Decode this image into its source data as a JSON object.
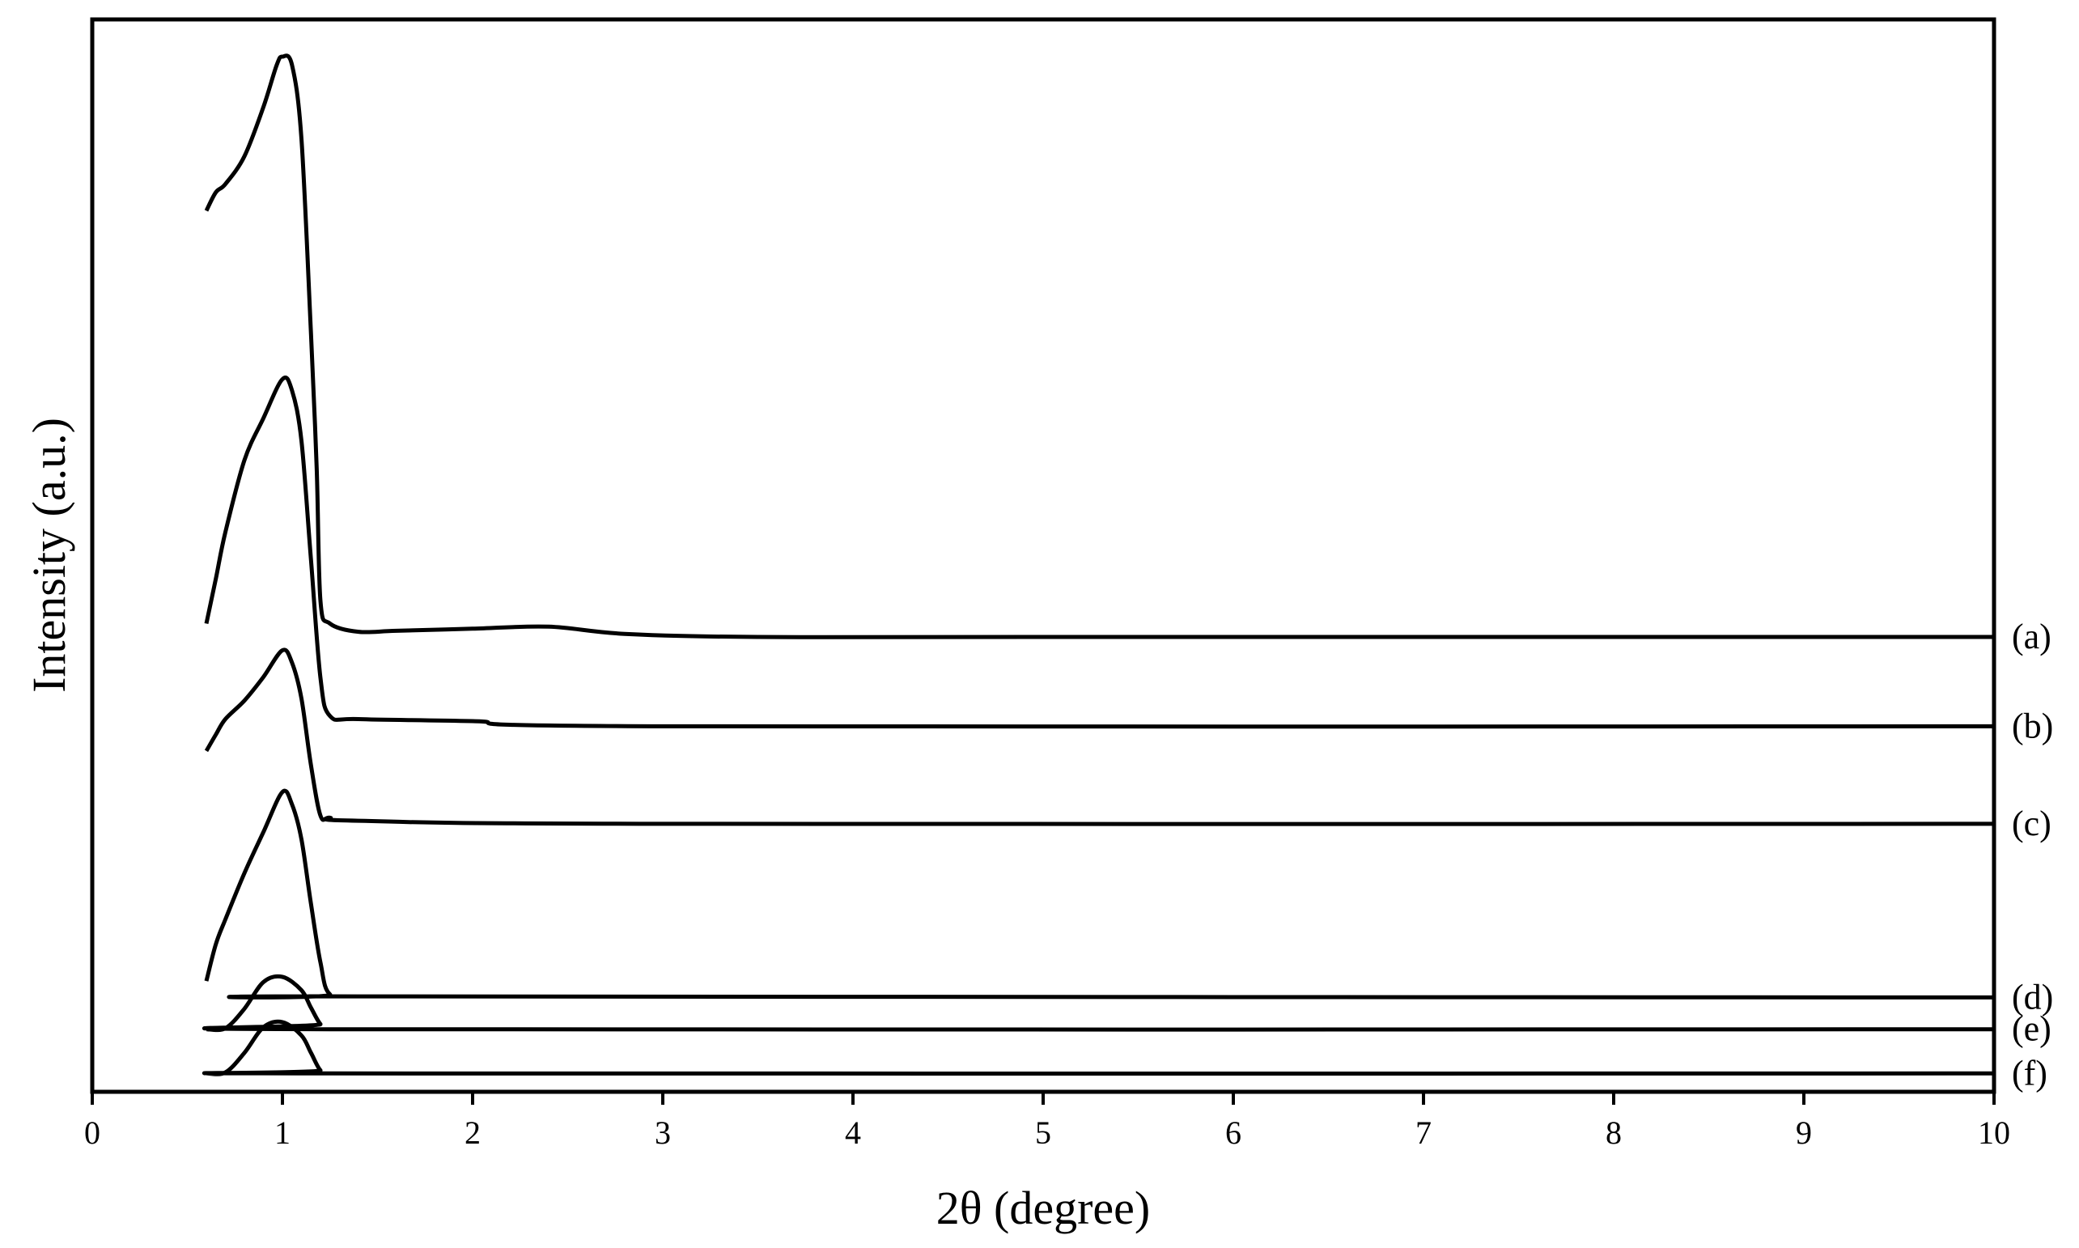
{
  "chart_data": {
    "type": "line",
    "title": "",
    "xlabel": "2θ (degree)",
    "ylabel": "Intensity (a.u.)",
    "xlim": [
      0,
      10
    ],
    "xticks": [
      "0",
      "1",
      "2",
      "3",
      "4",
      "5",
      "6",
      "7",
      "8",
      "9",
      "10"
    ],
    "yticks": [],
    "grid": false,
    "legend": "none",
    "series_note": "stacked diffraction patterns with arbitrary intensity; values are relative intensities including vertical offset",
    "series": [
      {
        "name": "(a)",
        "x": [
          0.6,
          0.65,
          0.7,
          0.8,
          0.9,
          0.97,
          1.0,
          1.05,
          1.1,
          1.15,
          1.18,
          1.2,
          1.25,
          1.4,
          1.6,
          2.0,
          2.4,
          2.8,
          3.5,
          5,
          10
        ],
        "y": [
          85.0,
          86.8,
          87.6,
          90.3,
          95.1,
          99.2,
          100.0,
          99.2,
          92.0,
          73.0,
          60.0,
          47.0,
          44.8,
          44.0,
          44.1,
          44.3,
          44.5,
          43.8,
          43.5,
          43.5,
          43.5
        ]
      },
      {
        "name": "(b)",
        "x": [
          0.6,
          0.65,
          0.7,
          0.8,
          0.9,
          1.0,
          1.05,
          1.1,
          1.15,
          1.2,
          1.25,
          1.4,
          2.0,
          3.0,
          10
        ],
        "y": [
          44.8,
          49.2,
          53.7,
          60.7,
          64.8,
          68.6,
          67.5,
          62.6,
          51.0,
          39.5,
          35.8,
          35.5,
          35.3,
          34.8,
          34.8
        ]
      },
      {
        "name": "(c)",
        "x": [
          0.6,
          0.65,
          0.7,
          0.8,
          0.9,
          1.0,
          1.05,
          1.1,
          1.15,
          1.2,
          1.25,
          1.4,
          3.0,
          10
        ],
        "y": [
          32.4,
          34.0,
          35.5,
          37.3,
          39.6,
          42.2,
          41.0,
          37.5,
          31.0,
          26.1,
          25.9,
          25.6,
          25.3,
          25.3
        ]
      },
      {
        "name": "(d)",
        "x": [
          0.6,
          0.65,
          0.7,
          0.8,
          0.9,
          1.0,
          1.05,
          1.1,
          1.15,
          1.2,
          1.25,
          1.4,
          10
        ],
        "y": [
          10.0,
          13.6,
          16.0,
          20.5,
          24.5,
          28.4,
          27.2,
          23.8,
          17.5,
          11.8,
          8.7,
          8.5,
          8.4
        ]
      },
      {
        "name": "(e)",
        "x": [
          0.6,
          0.7,
          0.8,
          0.9,
          1.0,
          1.1,
          1.15,
          1.2,
          1.25,
          10
        ],
        "y": [
          5.3,
          5.4,
          7.3,
          9.9,
          10.4,
          9.1,
          7.4,
          5.8,
          5.3,
          5.3
        ]
      },
      {
        "name": "(f)",
        "x": [
          0.6,
          0.7,
          0.8,
          0.9,
          1.0,
          1.1,
          1.15,
          1.2,
          1.25,
          10
        ],
        "y": [
          1.0,
          1.1,
          3.0,
          5.5,
          6.0,
          4.7,
          3.0,
          1.3,
          1.0,
          1.0
        ]
      }
    ]
  }
}
